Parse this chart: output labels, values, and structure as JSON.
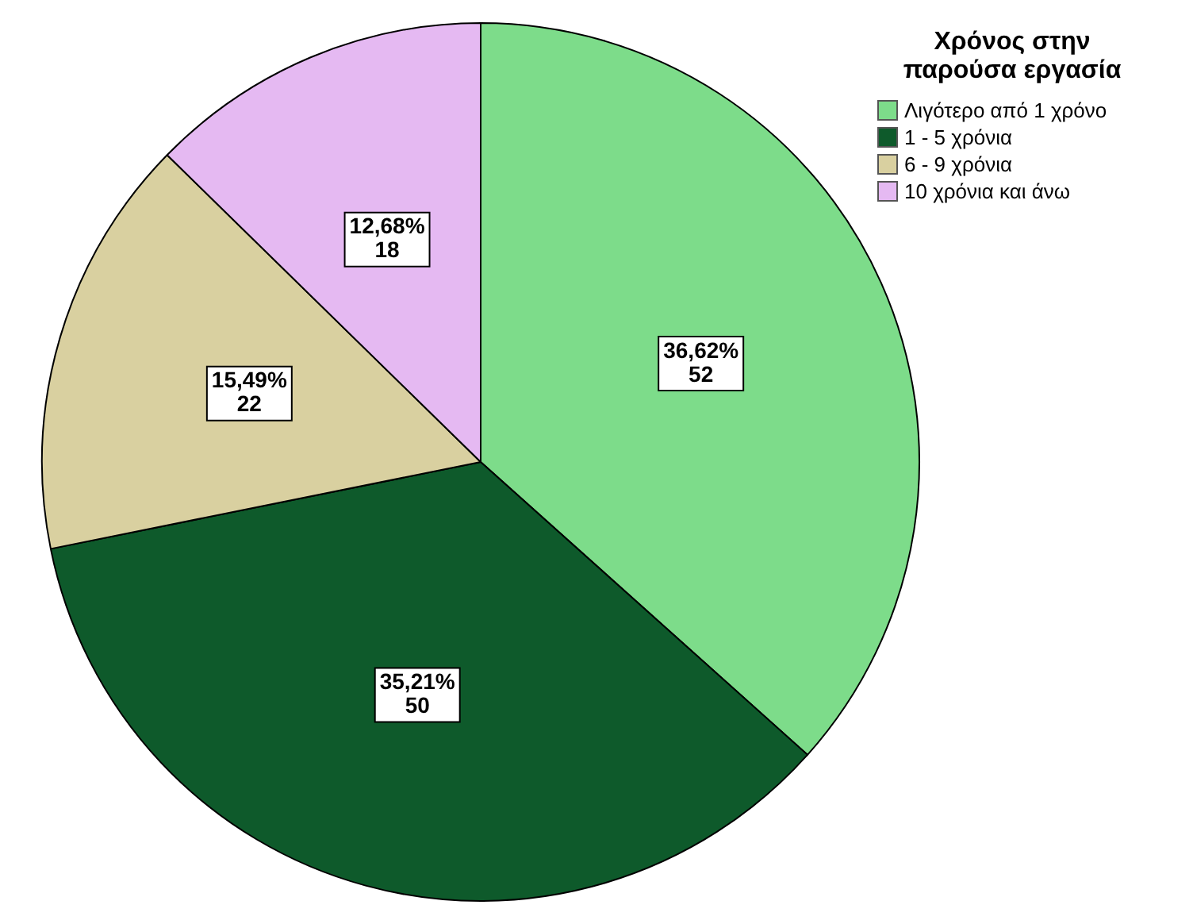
{
  "chart_data": {
    "type": "pie",
    "legend_title": "Χρόνος στην παρούσα εργασία",
    "legend": "top right",
    "categories": [
      "Λιγότερο από  1 χρόνο",
      "1 - 5 χρόνια",
      "6 - 9 χρόνια",
      "10 χρόνια και άνω"
    ],
    "values": [
      52,
      50,
      22,
      18
    ],
    "value_labels": [
      "36,62%\n52",
      "35,21%\n50",
      "15,49%\n22",
      "12,68%\n18"
    ],
    "colors": [
      "#7ddc8a",
      "#0e5a2b",
      "#d9d0a0",
      "#e5b9f2"
    ]
  }
}
